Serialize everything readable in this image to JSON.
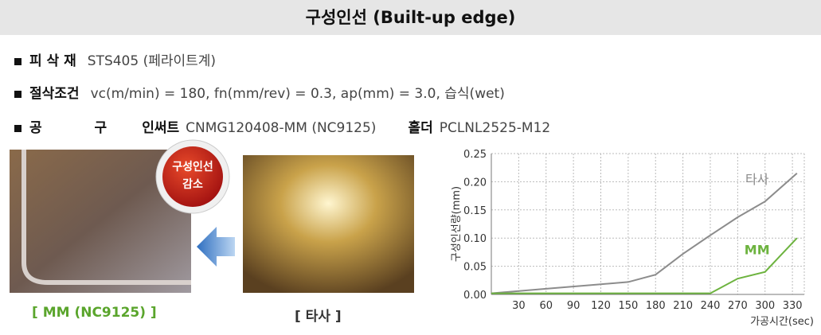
{
  "header": {
    "title": "구성인선 (Built-up edge)"
  },
  "specs": [
    {
      "label": "피 삭 재",
      "text": "STS405 (페라이트계)"
    },
    {
      "label": "절삭조건",
      "text": "vc(m/min) = 180, fn(mm/rev) = 0.3, ap(mm) = 3.0, 습식(wet)"
    },
    {
      "label": "공 구",
      "parts": [
        "인써트",
        "CNMG120408-MM (NC9125)",
        "홀더",
        "PCLNL2525-M12"
      ]
    }
  ],
  "badge": [
    "구성인선",
    "감소"
  ],
  "captions": [
    "[ MM (NC9125) ]",
    "[ 타사 ]"
  ],
  "chart_data": {
    "type": "line",
    "x_label": "가공시간(sec)",
    "y_label": "구성인선량(mm)",
    "x": [
      0,
      60,
      120,
      150,
      180,
      210,
      240,
      270,
      300,
      335
    ],
    "series": [
      {
        "name": "타사",
        "color": "#8c8c8c",
        "values": [
          0.002,
          0.01,
          0.018,
          0.022,
          0.035,
          0.072,
          0.105,
          0.137,
          0.165,
          0.215
        ]
      },
      {
        "name": "MM",
        "color": "#6db33f",
        "values": [
          0.002,
          0.002,
          0.002,
          0.002,
          0.002,
          0.002,
          0.002,
          0.028,
          0.04,
          0.1
        ]
      }
    ],
    "xlim": [
      0,
      343
    ],
    "xticks": [
      30,
      60,
      90,
      120,
      150,
      180,
      210,
      240,
      270,
      300,
      330
    ],
    "ylim": [
      0,
      0.25
    ],
    "yticks": [
      {
        "value": 0,
        "label": "0.00"
      },
      0.05,
      {
        "value": 0.1,
        "label": "0.10"
      },
      0.15,
      {
        "value": 0.2,
        "label": "0.20"
      },
      0.25
    ],
    "grid": true
  }
}
